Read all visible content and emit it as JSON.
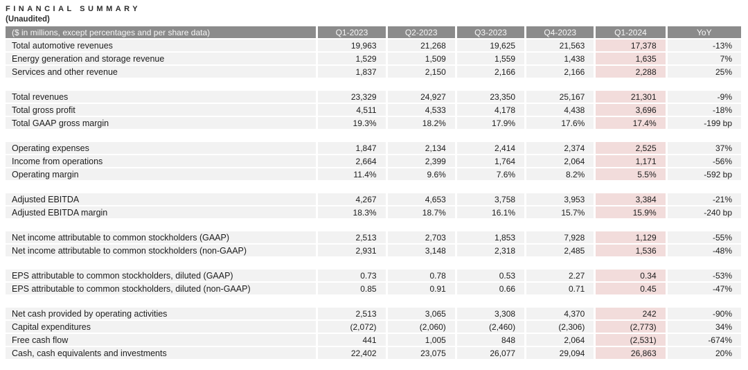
{
  "page": {
    "title": "FINANCIAL SUMMARY",
    "subtitle": "(Unaudited)"
  },
  "table": {
    "header": {
      "label": "($ in millions, except percentages and per share data)",
      "columns": [
        "Q1-2023",
        "Q2-2023",
        "Q3-2023",
        "Q4-2023",
        "Q1-2024",
        "YoY"
      ]
    },
    "highlight_column": "Q1-2024",
    "highlight_column_index": 4,
    "colors": {
      "header_bg": "#8b8b8b",
      "header_text": "#f7f7f7",
      "row_bg": "#f2f2f2",
      "highlight_bg": "#f2dcdb",
      "text": "#1c1c1c"
    },
    "sections": [
      {
        "name": "revenue-breakdown",
        "rows": [
          {
            "label": "Total automotive revenues",
            "values": [
              "19,963",
              "21,268",
              "19,625",
              "21,563",
              "17,378",
              "-13%"
            ]
          },
          {
            "label": "Energy generation and storage revenue",
            "values": [
              "1,529",
              "1,509",
              "1,559",
              "1,438",
              "1,635",
              "7%"
            ]
          },
          {
            "label": "Services and other revenue",
            "values": [
              "1,837",
              "2,150",
              "2,166",
              "2,166",
              "2,288",
              "25%"
            ]
          }
        ]
      },
      {
        "name": "totals",
        "rows": [
          {
            "label": "Total revenues",
            "values": [
              "23,329",
              "24,927",
              "23,350",
              "25,167",
              "21,301",
              "-9%"
            ]
          },
          {
            "label": "Total gross profit",
            "values": [
              "4,511",
              "4,533",
              "4,178",
              "4,438",
              "3,696",
              "-18%"
            ]
          },
          {
            "label": "Total GAAP gross margin",
            "values": [
              "19.3%",
              "18.2%",
              "17.9%",
              "17.6%",
              "17.4%",
              "-199 bp"
            ]
          }
        ]
      },
      {
        "name": "operations",
        "rows": [
          {
            "label": "Operating expenses",
            "values": [
              "1,847",
              "2,134",
              "2,414",
              "2,374",
              "2,525",
              "37%"
            ]
          },
          {
            "label": "Income from operations",
            "values": [
              "2,664",
              "2,399",
              "1,764",
              "2,064",
              "1,171",
              "-56%"
            ]
          },
          {
            "label": "Operating margin",
            "values": [
              "11.4%",
              "9.6%",
              "7.6%",
              "8.2%",
              "5.5%",
              "-592 bp"
            ]
          }
        ]
      },
      {
        "name": "ebitda",
        "rows": [
          {
            "label": "Adjusted EBITDA",
            "values": [
              "4,267",
              "4,653",
              "3,758",
              "3,953",
              "3,384",
              "-21%"
            ]
          },
          {
            "label": "Adjusted EBITDA margin",
            "values": [
              "18.3%",
              "18.7%",
              "16.1%",
              "15.7%",
              "15.9%",
              "-240 bp"
            ]
          }
        ]
      },
      {
        "name": "net-income",
        "rows": [
          {
            "label": "Net income attributable to common stockholders (GAAP)",
            "values": [
              "2,513",
              "2,703",
              "1,853",
              "7,928",
              "1,129",
              "-55%"
            ]
          },
          {
            "label": "Net income attributable to common stockholders (non-GAAP)",
            "values": [
              "2,931",
              "3,148",
              "2,318",
              "2,485",
              "1,536",
              "-48%"
            ]
          }
        ]
      },
      {
        "name": "eps",
        "rows": [
          {
            "label": "EPS attributable to common stockholders, diluted (GAAP)",
            "values": [
              "0.73",
              "0.78",
              "0.53",
              "2.27",
              "0.34",
              "-53%"
            ]
          },
          {
            "label": "EPS attributable to common stockholders, diluted (non-GAAP)",
            "values": [
              "0.85",
              "0.91",
              "0.66",
              "0.71",
              "0.45",
              "-47%"
            ]
          }
        ]
      },
      {
        "name": "cash-flow",
        "rows": [
          {
            "label": "Net cash provided by operating activities",
            "values": [
              "2,513",
              "3,065",
              "3,308",
              "4,370",
              "242",
              "-90%"
            ]
          },
          {
            "label": "Capital expenditures",
            "values": [
              "(2,072)",
              "(2,060)",
              "(2,460)",
              "(2,306)",
              "(2,773)",
              "34%"
            ]
          },
          {
            "label": "Free cash flow",
            "values": [
              "441",
              "1,005",
              "848",
              "2,064",
              "(2,531)",
              "-674%"
            ]
          },
          {
            "label": "Cash, cash equivalents and investments",
            "values": [
              "22,402",
              "23,075",
              "26,077",
              "29,094",
              "26,863",
              "20%"
            ]
          }
        ]
      }
    ]
  }
}
